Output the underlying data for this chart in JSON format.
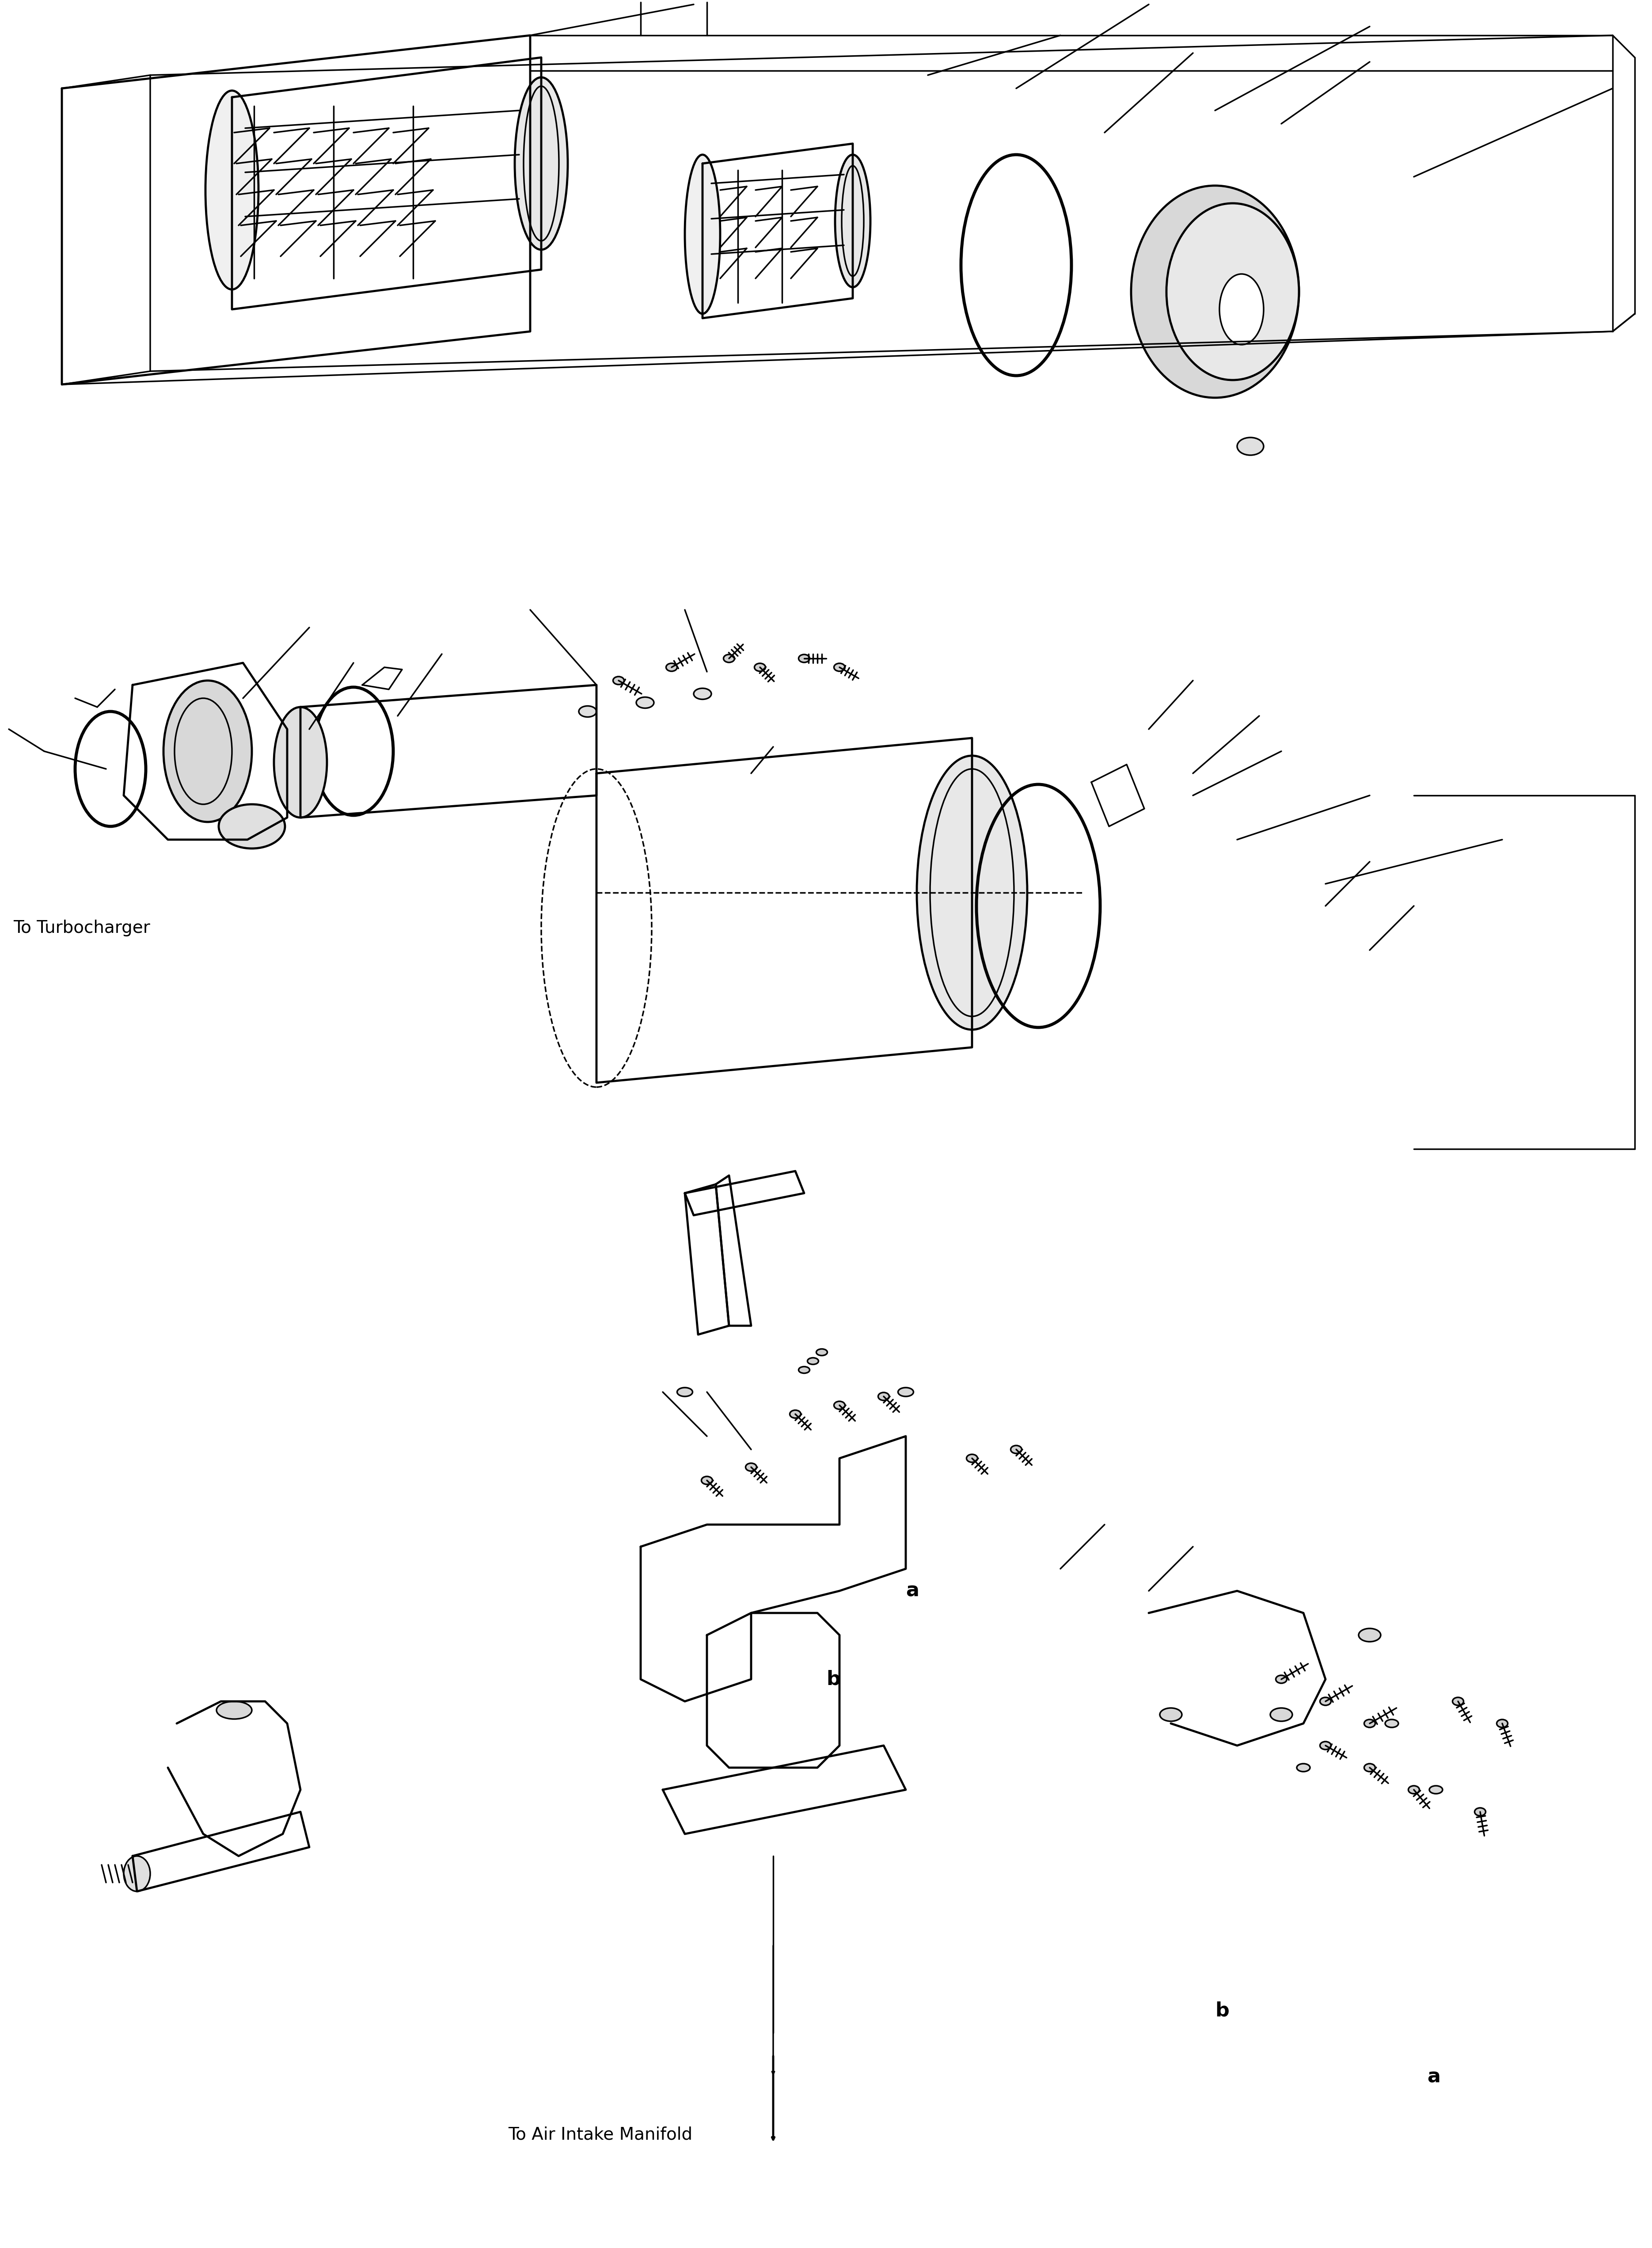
{
  "background_color": "#ffffff",
  "line_color": "#000000",
  "fig_width": 37.39,
  "fig_height": 50.87,
  "title": "",
  "label_turbocharger": "To Turbocharger",
  "label_air_intake": "To Air Intake Manifold",
  "label_a": "a",
  "label_b": "b",
  "font_size_labels": 28,
  "font_size_ab": 32
}
